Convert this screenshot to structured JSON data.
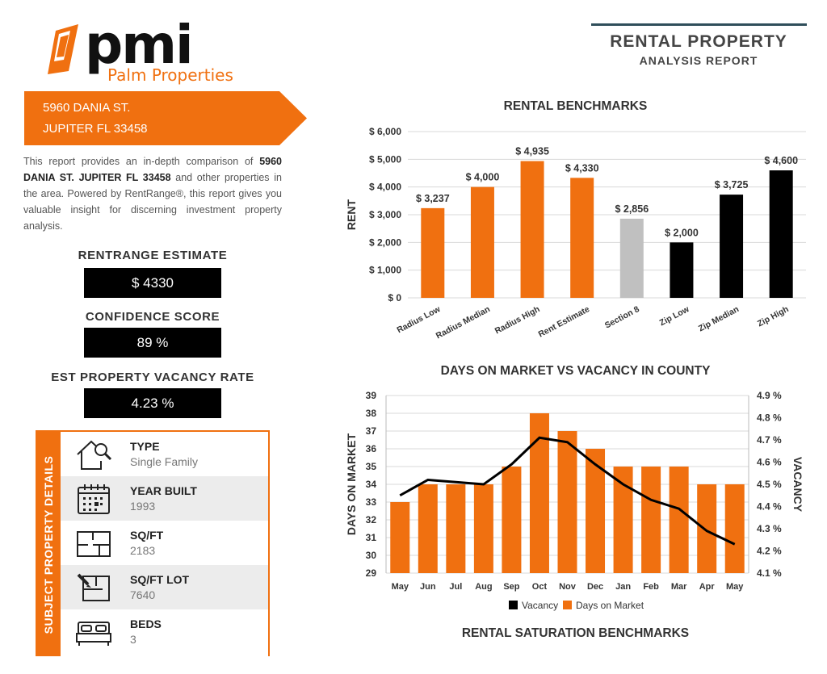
{
  "logo": {
    "wordmark": "pmi",
    "subtitle": "Palm Properties"
  },
  "address": {
    "line1": "5960 DANIA ST.",
    "line2": "JUPITER FL 33458"
  },
  "intro": {
    "before": "This report provides an in-depth comparison of ",
    "bold": "5960 DANIA ST. JUPITER FL 33458",
    "after": " and other properties in the area. Powered by RentRange®, this report gives you valuable insight for discerning investment property analysis."
  },
  "metrics": {
    "estimate_label": "RENTRANGE ESTIMATE",
    "estimate_value": "$ 4330",
    "confidence_label": "CONFIDENCE SCORE",
    "confidence_value": "89 %",
    "vacancy_label": "EST PROPERTY VACANCY RATE",
    "vacancy_value": "4.23 %"
  },
  "details": {
    "section_title": "SUBJECT PROPERTY DETAILS",
    "rows": [
      {
        "label": "TYPE",
        "value": "Single Family",
        "icon": "house-search-icon"
      },
      {
        "label": "YEAR BUILT",
        "value": "1993",
        "icon": "calendar-icon"
      },
      {
        "label": "SQ/FT",
        "value": "2183",
        "icon": "floorplan-icon"
      },
      {
        "label": "SQ/FT LOT",
        "value": "7640",
        "icon": "lot-plan-icon"
      },
      {
        "label": "BEDS",
        "value": "3",
        "icon": "bed-icon"
      }
    ]
  },
  "header": {
    "title": "RENTAL PROPERTY",
    "subtitle": "ANALYSIS REPORT",
    "accent": "#2f4e5a"
  },
  "colors": {
    "orange": "#f07010",
    "gray": "#c0c0c0",
    "black": "#000000"
  },
  "chart_data": [
    {
      "type": "bar",
      "title": "RENTAL BENCHMARKS",
      "ylabel": "RENT",
      "ylim": [
        0,
        6000
      ],
      "yticks": [
        "$ 0",
        "$ 1,000",
        "$ 2,000",
        "$ 3,000",
        "$ 4,000",
        "$ 5,000",
        "$ 6,000"
      ],
      "categories": [
        "Radius Low",
        "Radius Median",
        "Radius High",
        "Rent Estimate",
        "Section 8",
        "Zip Low",
        "Zip Median",
        "Zip High"
      ],
      "values": [
        3237,
        4000,
        4935,
        4330,
        2856,
        2000,
        3725,
        4600
      ],
      "value_labels": [
        "$ 3,237",
        "$ 4,000",
        "$ 4,935",
        "$ 4,330",
        "$ 2,856",
        "$ 2,000",
        "$ 3,725",
        "$ 4,600"
      ],
      "bar_colors": [
        "#f07010",
        "#f07010",
        "#f07010",
        "#f07010",
        "#c0c0c0",
        "#000000",
        "#000000",
        "#000000"
      ],
      "grid": true
    },
    {
      "type": "bar",
      "title": "DAYS ON MARKET VS VACANCY IN COUNTY",
      "ylabel": "DAYS ON MARKET",
      "y2label": "VACANCY",
      "ylim": [
        29,
        39
      ],
      "y2lim": [
        4.1,
        4.9
      ],
      "yticks": [
        "29",
        "30",
        "31",
        "32",
        "33",
        "34",
        "35",
        "36",
        "37",
        "38",
        "39"
      ],
      "y2ticks": [
        "4.1 %",
        "4.2 %",
        "4.3 %",
        "4.4 %",
        "4.5 %",
        "4.6 %",
        "4.7 %",
        "4.8 %",
        "4.9 %"
      ],
      "categories": [
        "May",
        "Jun",
        "Jul",
        "Aug",
        "Sep",
        "Oct",
        "Nov",
        "Dec",
        "Jan",
        "Feb",
        "Mar",
        "Apr",
        "May"
      ],
      "series": [
        {
          "name": "Days on Market",
          "kind": "bar",
          "color": "#f07010",
          "values": [
            33,
            34,
            34,
            34,
            35,
            38,
            37,
            36,
            35,
            35,
            35,
            34,
            34
          ]
        },
        {
          "name": "Vacancy",
          "kind": "line",
          "color": "#000000",
          "values": [
            4.45,
            4.52,
            4.51,
            4.5,
            4.59,
            4.71,
            4.69,
            4.59,
            4.5,
            4.43,
            4.39,
            4.29,
            4.23
          ]
        }
      ],
      "legend": "bottom",
      "grid": true
    }
  ],
  "saturation_title": "RENTAL SATURATION BENCHMARKS"
}
